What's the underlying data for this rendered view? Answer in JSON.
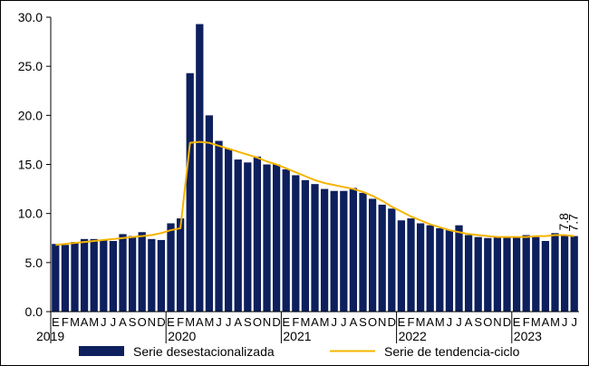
{
  "chart_data": {
    "type": "bar",
    "ylim": [
      0,
      30
    ],
    "yticks": [
      "0.0",
      "5.0",
      "10.0",
      "15.0",
      "20.0",
      "25.0",
      "30.0"
    ],
    "month_letters": [
      "E",
      "F",
      "M",
      "A",
      "M",
      "J",
      "J",
      "A",
      "S",
      "O",
      "N",
      "D"
    ],
    "years": [
      "2019",
      "2020",
      "2021",
      "2022",
      "2023"
    ],
    "series": [
      {
        "name": "Serie desestacionalizada",
        "color": "#0d1f5c",
        "values": [
          6.9,
          6.8,
          7.1,
          7.4,
          7.4,
          7.3,
          7.2,
          7.9,
          7.7,
          8.1,
          7.4,
          7.3,
          9.0,
          9.5,
          24.3,
          29.3,
          20.0,
          17.4,
          16.6,
          15.5,
          15.2,
          15.8,
          15.0,
          15.0,
          14.5,
          13.9,
          13.4,
          13.0,
          12.5,
          12.3,
          12.3,
          12.6,
          12.1,
          11.5,
          10.9,
          10.5,
          9.3,
          9.5,
          9.0,
          8.8,
          8.5,
          8.3,
          8.8,
          7.8,
          7.6,
          7.5,
          7.6,
          7.6,
          7.6,
          7.8,
          7.6,
          7.2,
          8.0,
          7.8,
          7.7
        ]
      },
      {
        "name": "Serie de tendencia-ciclo",
        "color": "#f5b400",
        "values": [
          6.8,
          6.9,
          7.0,
          7.1,
          7.2,
          7.3,
          7.4,
          7.5,
          7.6,
          7.7,
          7.8,
          8.0,
          8.3,
          8.5,
          17.2,
          17.3,
          17.2,
          16.9,
          16.6,
          16.3,
          16.0,
          15.7,
          15.3,
          15.0,
          14.6,
          14.2,
          13.8,
          13.4,
          13.1,
          12.9,
          12.7,
          12.5,
          12.2,
          11.8,
          11.3,
          10.7,
          10.2,
          9.7,
          9.3,
          8.9,
          8.6,
          8.3,
          8.1,
          7.9,
          7.8,
          7.7,
          7.6,
          7.6,
          7.6,
          7.6,
          7.7,
          7.7,
          7.8,
          7.8,
          7.7
        ]
      }
    ],
    "data_labels": [
      {
        "index": 53,
        "text": "7.8"
      },
      {
        "index": 54,
        "text": "7.7"
      }
    ],
    "grid": false,
    "legend_position": "bottom"
  }
}
